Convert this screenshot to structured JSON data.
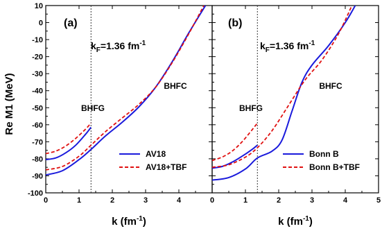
{
  "figure": {
    "ylabel": "Re M1 (MeV)",
    "ylabel_prefix": "Re M1 (MeV)"
  },
  "chart_data": [
    {
      "type": "line",
      "panel_label": "(a)",
      "xlabel_base": "k (fm",
      "xlabel_sup": "-1",
      "xlabel_tail": ")",
      "ylabel": "Re M1 (MeV)",
      "xlim": [
        0,
        5
      ],
      "ylim": [
        -100,
        10
      ],
      "x_ticks": [
        0,
        1,
        2,
        3,
        4
      ],
      "y_ticks": [
        -100,
        -90,
        -80,
        -70,
        -60,
        -50,
        -40,
        -30,
        -20,
        -10,
        0,
        10
      ],
      "kF_value": 1.36,
      "kF_label_main": "k",
      "kF_label_sub": "F",
      "kF_label_mid": "=1.36 fm",
      "kF_label_sup": "-1",
      "annotations": [
        "BHFG",
        "BHFC"
      ],
      "legend": [
        "AV18",
        "AV18+TBF"
      ],
      "series": [
        {
          "name": "AV18",
          "color": "#1a1adc",
          "dash": "solid",
          "x": [
            0,
            0.3,
            0.6,
            0.9,
            1.2,
            1.36
          ],
          "y": [
            -80.5,
            -79.5,
            -76.5,
            -72.0,
            -65.5,
            -61.5
          ]
        },
        {
          "name": "AV18",
          "color": "#1a1adc",
          "dash": "solid",
          "x": [
            0,
            0.5,
            1.0,
            1.36,
            1.8,
            2.3,
            2.8,
            3.3,
            3.8,
            4.3,
            4.8
          ],
          "y": [
            -89.5,
            -87.0,
            -80.5,
            -74.5,
            -66.5,
            -58.5,
            -49.5,
            -38.0,
            -23.0,
            -6.0,
            10.0
          ]
        },
        {
          "name": "AV18+TBF",
          "color": "#e01010",
          "dash": "dashed",
          "x": [
            0,
            0.3,
            0.6,
            0.9,
            1.2,
            1.36
          ],
          "y": [
            -77.0,
            -75.5,
            -72.5,
            -68.0,
            -62.5,
            -59.0
          ]
        },
        {
          "name": "AV18+TBF",
          "color": "#e01010",
          "dash": "dashed",
          "x": [
            0,
            0.5,
            1.0,
            1.36,
            1.8,
            2.3,
            2.8,
            3.3,
            3.8,
            4.3,
            4.75
          ],
          "y": [
            -86.5,
            -84.5,
            -78.5,
            -72.0,
            -64.0,
            -56.0,
            -48.0,
            -38.0,
            -23.5,
            -6.5,
            10.0
          ]
        }
      ]
    },
    {
      "type": "line",
      "panel_label": "(b)",
      "xlabel_base": "k (fm",
      "xlabel_sup": "-1",
      "xlabel_tail": ")",
      "xlim": [
        0,
        5
      ],
      "ylim": [
        -100,
        10
      ],
      "x_ticks": [
        0,
        1,
        2,
        3,
        4,
        5
      ],
      "y_ticks": [
        -100,
        -90,
        -80,
        -70,
        -60,
        -50,
        -40,
        -30,
        -20,
        -10,
        0,
        10
      ],
      "kF_value": 1.36,
      "kF_label_main": "k",
      "kF_label_sub": "F",
      "kF_label_mid": "=1.36 fm",
      "kF_label_sup": "-1",
      "annotations": [
        "BHFG",
        "BHFC"
      ],
      "legend": [
        "Bonn B",
        "Bonn B+TBF"
      ],
      "series": [
        {
          "name": "Bonn B",
          "color": "#1a1adc",
          "dash": "solid",
          "x": [
            0,
            0.3,
            0.6,
            0.9,
            1.2,
            1.36
          ],
          "y": [
            -85.5,
            -84.5,
            -82.0,
            -78.5,
            -74.5,
            -72.0
          ]
        },
        {
          "name": "Bonn B",
          "color": "#1a1adc",
          "dash": "solid",
          "x": [
            0,
            0.5,
            1.0,
            1.36,
            1.8,
            2.1,
            2.4,
            2.7,
            3.0,
            3.5,
            4.0,
            4.3
          ],
          "y": [
            -92.5,
            -91.0,
            -86.0,
            -79.5,
            -75.5,
            -69.0,
            -52.0,
            -35.0,
            -25.0,
            -13.5,
            0.0,
            10.0
          ]
        },
        {
          "name": "Bonn B+TBF",
          "color": "#e01010",
          "dash": "dashed",
          "x": [
            0,
            0.3,
            0.6,
            0.9,
            1.2,
            1.36
          ],
          "y": [
            -81.0,
            -79.0,
            -75.5,
            -70.0,
            -63.0,
            -59.0
          ]
        },
        {
          "name": "Bonn B+TBF",
          "color": "#e01010",
          "dash": "dashed",
          "x": [
            0,
            0.5,
            1.0,
            1.36,
            1.8,
            2.3,
            2.8,
            3.3,
            3.8,
            4.2
          ],
          "y": [
            -85.0,
            -83.5,
            -79.0,
            -73.5,
            -63.5,
            -48.5,
            -33.5,
            -22.0,
            -6.5,
            10.0
          ]
        }
      ]
    }
  ]
}
